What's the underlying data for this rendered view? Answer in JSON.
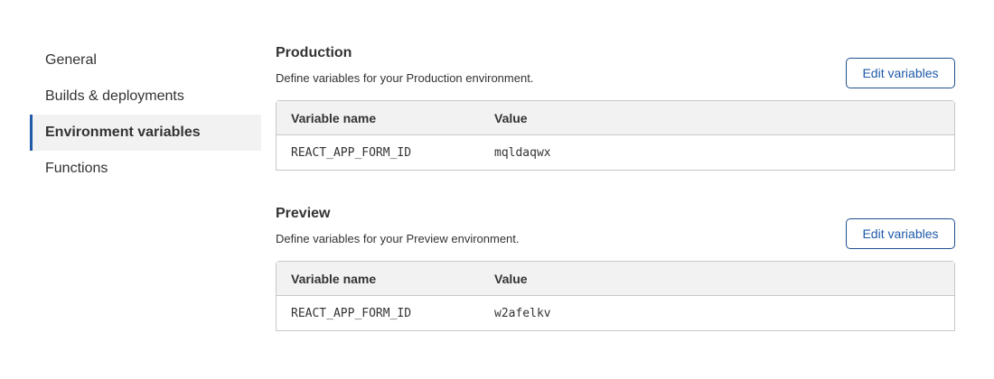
{
  "sidebar": {
    "items": [
      {
        "label": "General",
        "active": false
      },
      {
        "label": "Builds & deployments",
        "active": false
      },
      {
        "label": "Environment variables",
        "active": true
      },
      {
        "label": "Functions",
        "active": false
      }
    ]
  },
  "sections": [
    {
      "title": "Production",
      "description": "Define variables for your Production environment.",
      "button": "Edit variables",
      "columns": [
        "Variable name",
        "Value"
      ],
      "rows": [
        [
          "REACT_APP_FORM_ID",
          "mqldaqwx"
        ]
      ]
    },
    {
      "title": "Preview",
      "description": "Define variables for your Preview environment.",
      "button": "Edit variables",
      "columns": [
        "Variable name",
        "Value"
      ],
      "rows": [
        [
          "REACT_APP_FORM_ID",
          "w2afelkv"
        ]
      ]
    }
  ],
  "colors": {
    "accent": "#1e5aa8",
    "active_bg": "#f2f2f2"
  }
}
